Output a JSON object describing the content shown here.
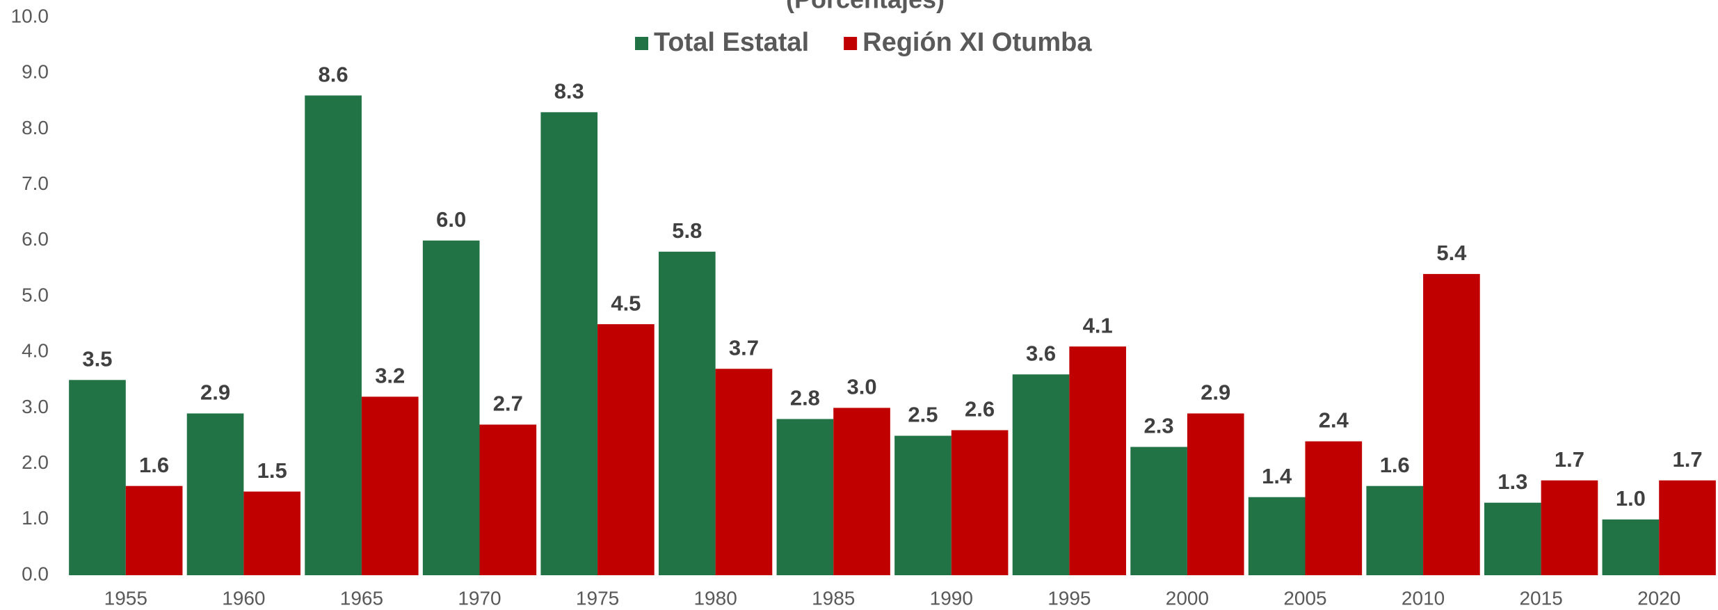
{
  "chart_data": {
    "type": "bar",
    "subtitle": "(Porcentajes)",
    "categories": [
      "1955",
      "1960",
      "1965",
      "1970",
      "1975",
      "1980",
      "1985",
      "1990",
      "1995",
      "2000",
      "2005",
      "2010",
      "2015",
      "2020"
    ],
    "series": [
      {
        "name": "Total Estatal",
        "color": "#217346",
        "values": [
          3.5,
          2.9,
          8.6,
          6.0,
          8.3,
          5.8,
          2.8,
          2.5,
          3.6,
          2.3,
          1.4,
          1.6,
          1.3,
          1.0
        ],
        "value_labels": [
          "3.5",
          "2.9",
          "8.6",
          "6.0",
          "8.3",
          "5.8",
          "2.8",
          "2.5",
          "3.6",
          "2.3",
          "1.4",
          "1.6",
          "1.3",
          "1.0"
        ]
      },
      {
        "name": "Región XI Otumba",
        "color": "#c00000",
        "values": [
          1.6,
          1.5,
          3.2,
          2.7,
          4.5,
          3.7,
          3.0,
          2.6,
          4.1,
          2.9,
          2.4,
          5.4,
          1.7,
          1.7
        ],
        "value_labels": [
          "1.6",
          "1.5",
          "3.2",
          "2.7",
          "4.5",
          "3.7",
          "3.0",
          "2.6",
          "4.1",
          "2.9",
          "2.4",
          "5.4",
          "1.7",
          "1.7"
        ]
      }
    ],
    "ylim": [
      0,
      10
    ],
    "yticks": [
      {
        "value": 0,
        "label": "0.0"
      },
      {
        "value": 1,
        "label": "1.0"
      },
      {
        "value": 2,
        "label": "2.0"
      },
      {
        "value": 3,
        "label": "3.0"
      },
      {
        "value": 4,
        "label": "4.0"
      },
      {
        "value": 5,
        "label": "5.0"
      },
      {
        "value": 6,
        "label": "6.0"
      },
      {
        "value": 7,
        "label": "7.0"
      },
      {
        "value": 8,
        "label": "8.0"
      },
      {
        "value": 9,
        "label": "9.0"
      },
      {
        "value": 10,
        "label": "10.0"
      }
    ],
    "legend": "top",
    "grid": false
  }
}
